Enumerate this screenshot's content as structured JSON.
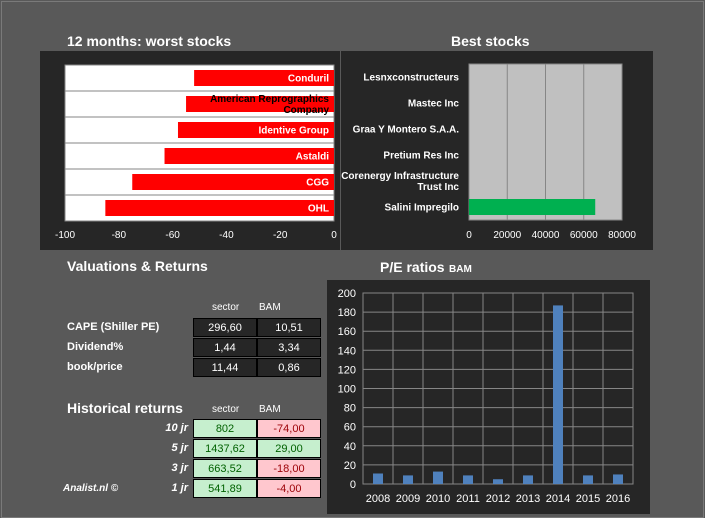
{
  "worst": {
    "title": "12 months: worst stocks",
    "chart_data": {
      "type": "bar",
      "orientation": "horizontal",
      "categories": [
        "Conduril",
        "American Reprographics Company",
        "Identive Group",
        "Astaldi",
        "CGG",
        "OHL"
      ],
      "values": [
        -52,
        -55,
        -58,
        -63,
        -75,
        -85
      ],
      "xlim": [
        -100,
        0
      ],
      "xticks": [
        -100,
        -80,
        -60,
        -40,
        -20,
        0
      ],
      "bar_color": "#ff0000",
      "grid": true
    }
  },
  "best": {
    "title": "Best stocks",
    "chart_data": {
      "type": "bar",
      "orientation": "horizontal",
      "categories": [
        "Lesnxconstructeurs",
        "Mastec Inc",
        "Graa Y Montero S.A.A.",
        "Pretium Res Inc",
        "Corenergy Infrastructure Trust Inc",
        "Salini Impregilo"
      ],
      "values": [
        0,
        0,
        0,
        0,
        0,
        66000
      ],
      "xlim": [
        0,
        80000
      ],
      "xticks": [
        0,
        20000,
        40000,
        60000,
        80000
      ],
      "bar_color": "#00b050",
      "grid": true
    }
  },
  "valuations": {
    "title": "Valuations & Returns",
    "col_sector": "sector",
    "col_bam": "BAM",
    "rows": [
      {
        "label": "CAPE (Shiller PE)",
        "sector": "296,60",
        "bam": "10,51"
      },
      {
        "label": "Dividend%",
        "sector": "1,44",
        "bam": "3,34"
      },
      {
        "label": "book/price",
        "sector": "11,44",
        "bam": "0,86"
      }
    ]
  },
  "historical": {
    "title": "Historical returns",
    "col_sector": "sector",
    "col_bam": "BAM",
    "rows": [
      {
        "label": "10 jr",
        "sector": "802",
        "bam": "-74,00"
      },
      {
        "label": "5 jr",
        "sector": "1437,62",
        "bam": "29,00"
      },
      {
        "label": "3 jr",
        "sector": "663,52",
        "bam": "-18,00"
      },
      {
        "label": "1 jr",
        "sector": "541,89",
        "bam": "-4,00"
      }
    ],
    "colors": {
      "positive_bg": "#c6efce",
      "positive_text": "#006100",
      "negative_bg": "#ffc7ce",
      "negative_text": "#9c0006"
    }
  },
  "credit": "Analist.nl ©",
  "pe": {
    "title": "P/E ratios",
    "subtitle": "BAM",
    "chart_data": {
      "type": "bar",
      "categories": [
        "2008",
        "2009",
        "2010",
        "2011",
        "2012",
        "2013",
        "2014",
        "2015",
        "2016"
      ],
      "values": [
        11,
        9,
        13,
        9,
        5,
        9,
        187,
        9,
        10
      ],
      "ylim": [
        0,
        200
      ],
      "yticks": [
        0,
        20,
        40,
        60,
        80,
        100,
        120,
        140,
        160,
        180,
        200
      ],
      "bar_color": "#4f81bd",
      "grid": true
    }
  }
}
